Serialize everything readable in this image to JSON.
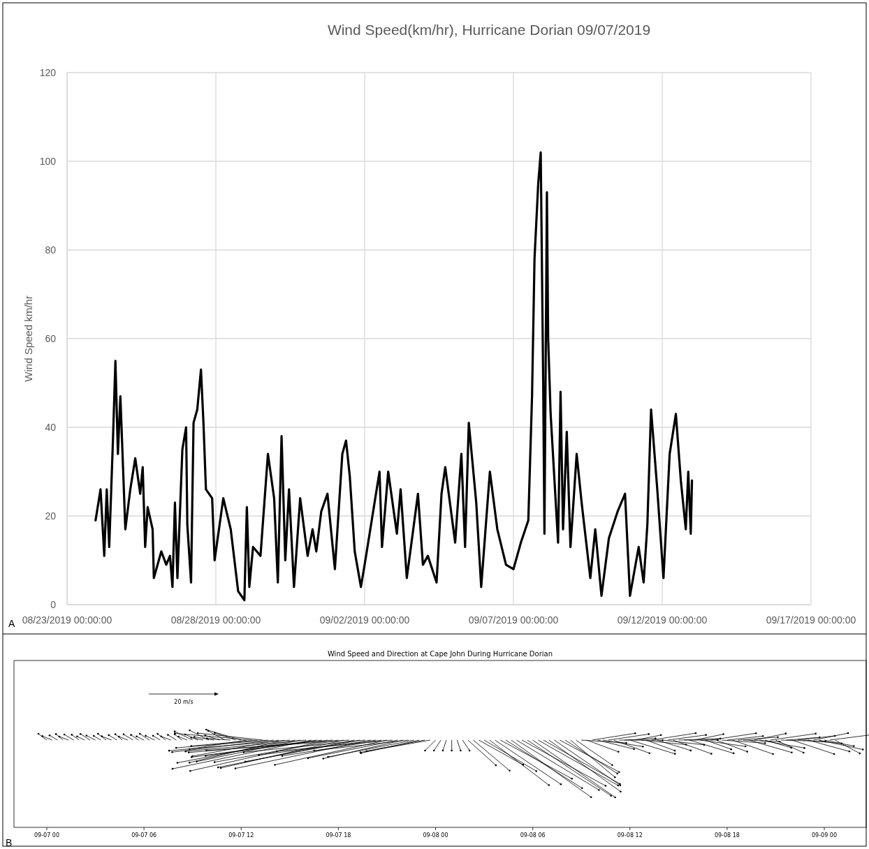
{
  "chart_data": [
    {
      "type": "line",
      "title": "Wind Speed(km/hr), Hurricane Dorian 09/07/2019",
      "ylabel": "Wind Speed km/hr",
      "annotations": [
        "A"
      ],
      "xlim": [
        "2019-08-23",
        "2019-09-17"
      ],
      "xticks": [
        {
          "value": "2019-08-23",
          "label": "08/23/2019 00:00:00"
        },
        {
          "value": "2019-08-28",
          "label": "08/28/2019 00:00:00"
        },
        {
          "value": "2019-09-02",
          "label": "09/02/2019 00:00:00"
        },
        {
          "value": "2019-09-07",
          "label": "09/07/2019 00:00:00"
        },
        {
          "value": "2019-09-12",
          "label": "09/12/2019 00:00:00"
        },
        {
          "value": "2019-09-17",
          "label": "09/17/2019 00:00:00"
        }
      ],
      "ylim": [
        0,
        120
      ],
      "yticks": [
        0,
        20,
        40,
        60,
        80,
        100,
        120
      ],
      "grid": true,
      "marker": "none",
      "line_style": "solid",
      "series": [
        {
          "color": "#000000",
          "x": [
            "2019-08-23T23:00",
            "2019-08-24T03:00",
            "2019-08-24T06:00",
            "2019-08-24T08:00",
            "2019-08-24T10:00",
            "2019-08-24T13:00",
            "2019-08-24T15:00",
            "2019-08-24T17:00",
            "2019-08-24T19:00",
            "2019-08-24T23:00",
            "2019-08-25T03:00",
            "2019-08-25T07:00",
            "2019-08-25T11:00",
            "2019-08-25T13:00",
            "2019-08-25T15:00",
            "2019-08-25T17:00",
            "2019-08-25T21:00",
            "2019-08-25T22:00",
            "2019-08-26T04:00",
            "2019-08-26T08:00",
            "2019-08-26T11:00",
            "2019-08-26T13:00",
            "2019-08-26T15:00",
            "2019-08-26T17:00",
            "2019-08-26T21:00",
            "2019-08-27T00:00",
            "2019-08-27T01:00",
            "2019-08-27T04:00",
            "2019-08-27T06:00",
            "2019-08-27T09:00",
            "2019-08-27T12:00",
            "2019-08-27T14:00",
            "2019-08-27T16:00",
            "2019-08-27T21:00",
            "2019-08-27T23:00",
            "2019-08-28T06:00",
            "2019-08-28T12:00",
            "2019-08-28T18:00",
            "2019-08-28T23:00",
            "2019-08-29T01:00",
            "2019-08-29T03:00",
            "2019-08-29T06:00",
            "2019-08-29T12:00",
            "2019-08-29T18:00",
            "2019-08-29T23:00",
            "2019-08-30T02:00",
            "2019-08-30T05:00",
            "2019-08-30T08:00",
            "2019-08-30T11:00",
            "2019-08-30T15:00",
            "2019-08-30T20:00",
            "2019-08-31T02:00",
            "2019-08-31T06:00",
            "2019-08-31T09:00",
            "2019-08-31T13:00",
            "2019-08-31T18:00",
            "2019-09-01T00:00",
            "2019-09-01T06:00",
            "2019-09-01T09:00",
            "2019-09-01T12:00",
            "2019-09-01T16:00",
            "2019-09-01T21:00",
            "2019-09-02T00:00",
            "2019-09-02T12:00",
            "2019-09-02T14:00",
            "2019-09-02T19:00",
            "2019-09-03T02:00",
            "2019-09-03T05:00",
            "2019-09-03T10:00",
            "2019-09-03T19:00",
            "2019-09-03T23:00",
            "2019-09-04T03:00",
            "2019-09-04T10:00",
            "2019-09-04T14:00",
            "2019-09-04T17:00",
            "2019-09-05T01:00",
            "2019-09-05T06:00",
            "2019-09-05T09:00",
            "2019-09-05T12:00",
            "2019-09-05T18:00",
            "2019-09-05T22:00",
            "2019-09-06T05:00",
            "2019-09-06T11:00",
            "2019-09-06T18:00",
            "2019-09-07T00:00",
            "2019-09-07T06:00",
            "2019-09-07T12:00",
            "2019-09-07T15:00",
            "2019-09-07T17:00",
            "2019-09-07T20:00",
            "2019-09-07T22:00",
            "2019-09-08T00:00",
            "2019-09-08T01:00",
            "2019-09-08T03:00",
            "2019-09-08T04:00",
            "2019-09-08T06:00",
            "2019-09-08T12:00",
            "2019-09-08T14:00",
            "2019-09-08T16:00",
            "2019-09-08T19:00",
            "2019-09-08T22:00",
            "2019-09-09T03:00",
            "2019-09-09T07:00",
            "2019-09-09T14:00",
            "2019-09-09T18:00",
            "2019-09-09T23:00",
            "2019-09-10T05:00",
            "2019-09-10T12:00",
            "2019-09-10T18:00",
            "2019-09-10T22:00",
            "2019-09-11T05:00",
            "2019-09-11T09:00",
            "2019-09-11T12:00",
            "2019-09-11T15:00",
            "2019-09-11T20:00",
            "2019-09-12T01:00",
            "2019-09-12T06:00",
            "2019-09-12T11:00",
            "2019-09-12T15:00",
            "2019-09-12T19:00",
            "2019-09-12T21:00",
            "2019-09-12T23:00",
            "2019-09-13T00:00"
          ],
          "values": [
            19,
            26,
            11,
            26,
            13,
            37,
            55,
            34,
            47,
            17,
            26,
            33,
            25,
            31,
            13,
            22,
            17,
            6,
            12,
            9,
            11,
            4,
            23,
            6,
            35,
            40,
            18,
            5,
            41,
            44,
            53,
            41,
            26,
            24,
            10,
            24,
            17,
            3,
            1,
            22,
            4,
            13,
            11,
            34,
            24,
            5,
            38,
            10,
            26,
            4,
            24,
            11,
            17,
            12,
            21,
            25,
            8,
            34,
            37,
            29,
            12,
            4,
            9,
            30,
            13,
            30,
            16,
            26,
            6,
            25,
            9,
            11,
            5,
            25,
            31,
            14,
            34,
            13,
            41,
            23,
            4,
            30,
            17,
            9,
            8,
            14,
            19,
            47,
            78,
            95,
            102,
            50,
            16,
            93,
            60,
            43,
            14,
            48,
            17,
            39,
            13,
            34,
            23,
            6,
            17,
            2,
            15,
            21,
            25,
            2,
            13,
            5,
            18,
            44,
            26,
            6,
            34,
            43,
            28,
            17,
            30,
            16,
            28
          ]
        }
      ]
    },
    {
      "type": "other",
      "title": "Wind Speed and Direction at Cape John During Hurricane Dorian",
      "annotations": [
        "20 m/s",
        "B"
      ],
      "categories": [
        "09-07 00",
        "09-07 06",
        "09-07 12",
        "09-07 18",
        "09-08 00",
        "09-08 06",
        "09-08 12",
        "09-08 18",
        "09-09 00"
      ]
    }
  ]
}
